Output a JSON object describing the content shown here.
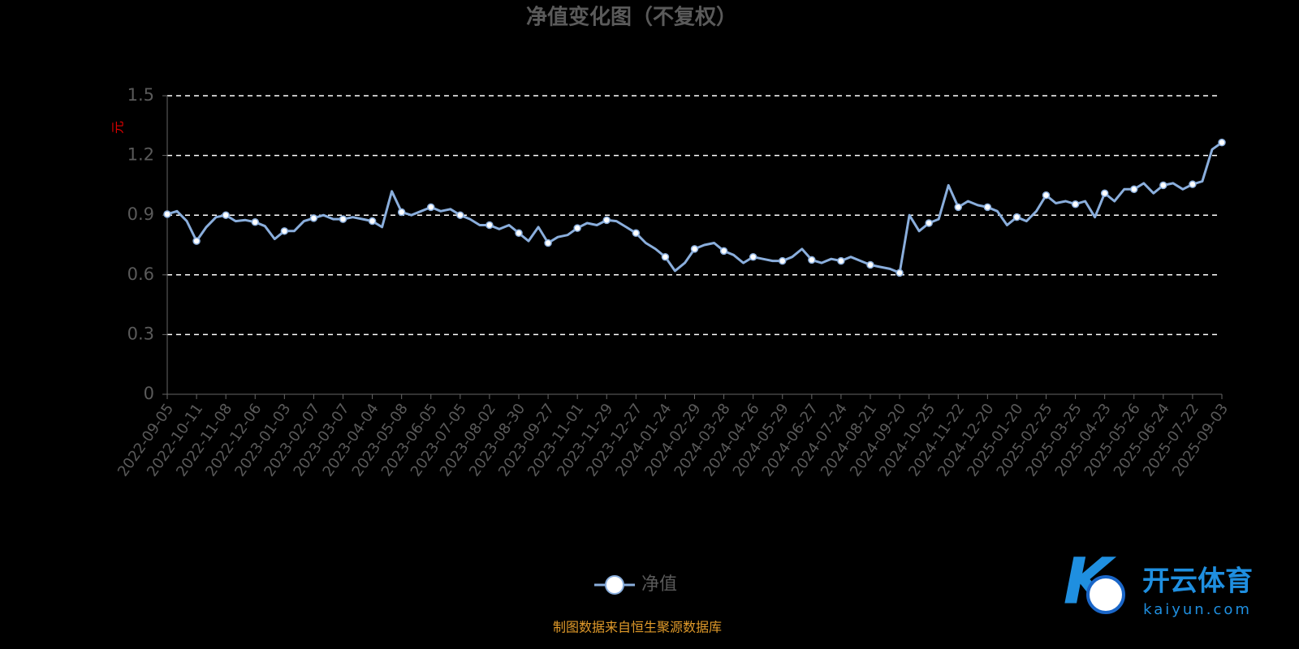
{
  "chart_data": {
    "type": "line",
    "title": "净值变化图（不复权）",
    "y_label": "元",
    "source": "制图数据来自恒生聚源数据库",
    "watermark": {
      "brand": "开云体育",
      "site": "kaiyun.com"
    },
    "grid": true,
    "ylim": [
      0,
      1.5
    ],
    "yticks": [
      0,
      0.3,
      0.6,
      0.9,
      1.2,
      1.5
    ],
    "categories": [
      "2022-09-05",
      null,
      null,
      "2022-10-11",
      null,
      null,
      "2022-11-08",
      null,
      null,
      "2022-12-06",
      null,
      null,
      "2023-01-03",
      null,
      null,
      "2023-02-07",
      null,
      null,
      "2023-03-07",
      null,
      null,
      "2023-04-04",
      null,
      null,
      "2023-05-08",
      null,
      null,
      "2023-06-05",
      null,
      null,
      "2023-07-05",
      null,
      null,
      "2023-08-02",
      null,
      null,
      "2023-08-30",
      null,
      null,
      "2023-09-27",
      null,
      null,
      "2023-11-01",
      null,
      null,
      "2023-11-29",
      null,
      null,
      "2023-12-27",
      null,
      null,
      "2024-01-24",
      null,
      null,
      "2024-02-29",
      null,
      null,
      "2024-03-28",
      null,
      null,
      "2024-04-26",
      null,
      null,
      "2024-05-29",
      null,
      null,
      "2024-06-27",
      null,
      null,
      "2024-07-24",
      null,
      null,
      "2024-08-21",
      null,
      null,
      "2024-09-20",
      null,
      null,
      "2024-10-25",
      null,
      null,
      "2024-11-22",
      null,
      null,
      "2024-12-20",
      null,
      null,
      "2025-01-20",
      null,
      null,
      "2025-02-25",
      null,
      null,
      "2025-03-25",
      null,
      null,
      "2025-04-23",
      null,
      null,
      "2025-05-26",
      null,
      null,
      "2025-06-24",
      null,
      null,
      "2025-07-22",
      null,
      null,
      "2025-09-03"
    ],
    "series": [
      {
        "name": "净值",
        "color": "#8aaedc",
        "values": [
          0.905,
          0.92,
          0.87,
          0.77,
          0.84,
          0.89,
          0.9,
          0.87,
          0.875,
          0.865,
          0.845,
          0.78,
          0.82,
          0.82,
          0.87,
          0.885,
          0.9,
          0.88,
          0.88,
          0.89,
          0.88,
          0.87,
          0.84,
          1.02,
          0.915,
          0.9,
          0.92,
          0.94,
          0.92,
          0.93,
          0.9,
          0.88,
          0.85,
          0.85,
          0.83,
          0.85,
          0.81,
          0.77,
          0.84,
          0.76,
          0.79,
          0.8,
          0.835,
          0.86,
          0.85,
          0.875,
          0.87,
          0.84,
          0.81,
          0.76,
          0.73,
          0.69,
          0.62,
          0.66,
          0.73,
          0.75,
          0.76,
          0.72,
          0.7,
          0.66,
          0.69,
          0.68,
          0.67,
          0.67,
          0.69,
          0.73,
          0.675,
          0.66,
          0.68,
          0.67,
          0.69,
          0.67,
          0.65,
          0.64,
          0.63,
          0.61,
          0.9,
          0.82,
          0.86,
          0.88,
          1.05,
          0.94,
          0.97,
          0.95,
          0.94,
          0.92,
          0.85,
          0.89,
          0.87,
          0.92,
          1.0,
          0.96,
          0.97,
          0.955,
          0.97,
          0.89,
          1.01,
          0.97,
          1.03,
          1.03,
          1.06,
          1.01,
          1.05,
          1.06,
          1.03,
          1.055,
          1.07,
          1.23,
          1.265
        ]
      }
    ]
  }
}
